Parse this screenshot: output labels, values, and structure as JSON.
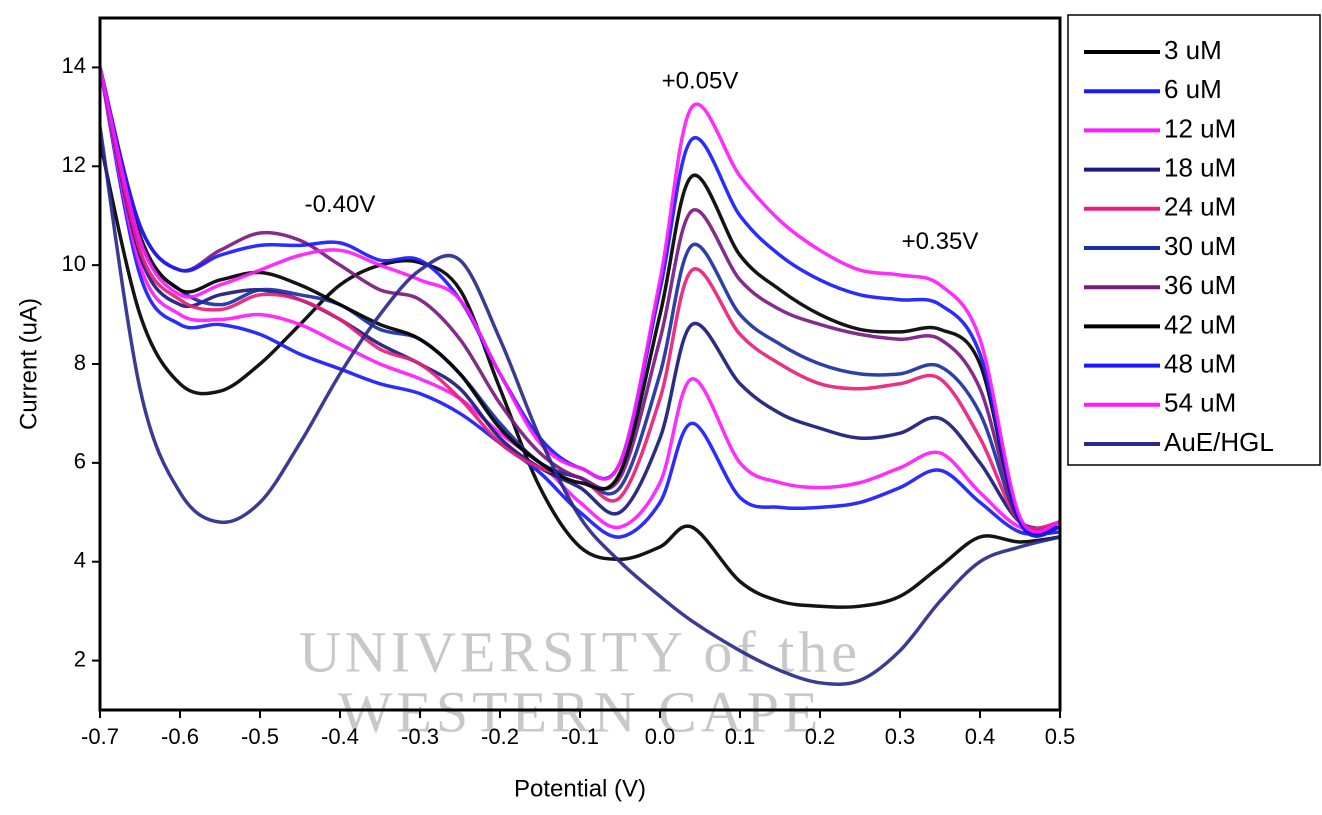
{
  "chart_data": {
    "type": "line",
    "xlabel": "Potential (V)",
    "ylabel": "Current (uA)",
    "annotations": [
      {
        "text": "-0.40V",
        "x": -0.4,
        "y": 11.2
      },
      {
        "text": "+0.05V",
        "x": 0.05,
        "y": 13.7
      },
      {
        "text": "+0.35V",
        "x": 0.35,
        "y": 10.45
      }
    ],
    "watermark": [
      "UNIVERSITY of the",
      "WESTERN CAPE"
    ],
    "xlim": [
      -0.7,
      0.5
    ],
    "ylim": [
      1,
      15
    ],
    "xticks": [
      -0.7,
      -0.6,
      -0.5,
      -0.4,
      -0.3,
      -0.2,
      -0.1,
      {
        "value": 0,
        "label": "0.0"
      },
      0.1,
      0.2,
      0.3,
      0.4,
      0.5
    ],
    "yticks": [
      2,
      4,
      6,
      8,
      10,
      12,
      14
    ],
    "legend": "outside-right",
    "x": [
      -0.7,
      -0.65,
      -0.6,
      -0.55,
      -0.5,
      -0.45,
      -0.4,
      -0.35,
      -0.3,
      -0.25,
      -0.2,
      -0.15,
      -0.1,
      -0.05,
      0,
      0.04,
      0.1,
      0.15,
      0.2,
      0.25,
      0.3,
      0.35,
      0.4,
      0.45,
      0.5
    ],
    "series": [
      {
        "name": "3 uM",
        "color": "#000000",
        "values": [
          12.5,
          9.0,
          7.6,
          7.45,
          8.0,
          8.8,
          9.6,
          10.0,
          10.05,
          9.5,
          7.5,
          5.5,
          4.3,
          4.05,
          4.3,
          4.7,
          3.6,
          3.2,
          3.1,
          3.1,
          3.3,
          3.9,
          4.5,
          4.4,
          4.5
        ]
      },
      {
        "name": "6 uM",
        "color": "#1a1aff",
        "values": [
          14,
          9.8,
          8.8,
          8.8,
          8.6,
          8.2,
          7.9,
          7.6,
          7.4,
          7.0,
          6.4,
          5.8,
          5.0,
          4.5,
          5.2,
          6.8,
          5.3,
          5.1,
          5.1,
          5.2,
          5.5,
          5.85,
          5.2,
          4.6,
          4.6
        ]
      },
      {
        "name": "12 uM",
        "color": "#ff1aff",
        "values": [
          14,
          10.0,
          9.0,
          8.9,
          9.0,
          8.8,
          8.4,
          8.0,
          7.7,
          7.3,
          6.6,
          6.0,
          5.2,
          4.7,
          5.6,
          7.7,
          6.0,
          5.6,
          5.5,
          5.6,
          5.9,
          6.2,
          5.4,
          4.7,
          4.7
        ]
      },
      {
        "name": "18 uM",
        "color": "#1a1a7a",
        "values": [
          14,
          10.2,
          9.2,
          9.4,
          9.5,
          9.3,
          8.9,
          8.4,
          8.0,
          7.5,
          6.5,
          5.9,
          5.5,
          5.0,
          6.5,
          8.8,
          7.6,
          7.0,
          6.7,
          6.5,
          6.6,
          6.9,
          6.0,
          4.8,
          4.7
        ]
      },
      {
        "name": "24 uM",
        "color": "#e8207a",
        "values": [
          14,
          10.3,
          9.3,
          9.1,
          9.4,
          9.3,
          8.9,
          8.3,
          8.0,
          7.3,
          6.4,
          5.9,
          5.7,
          5.3,
          7.3,
          9.9,
          8.6,
          8.0,
          7.6,
          7.5,
          7.6,
          7.7,
          6.5,
          4.8,
          4.8
        ]
      },
      {
        "name": "30 uM",
        "color": "#1a30a0",
        "values": [
          14,
          10.5,
          9.5,
          9.2,
          9.5,
          9.4,
          9.2,
          8.7,
          8.5,
          7.8,
          6.8,
          6.0,
          5.7,
          5.5,
          7.8,
          10.4,
          9.0,
          8.4,
          8.0,
          7.8,
          7.8,
          7.95,
          7.0,
          4.8,
          4.7
        ]
      },
      {
        "name": "36 uM",
        "color": "#7a1a80",
        "values": [
          14,
          10.8,
          9.9,
          10.3,
          10.65,
          10.5,
          10.0,
          9.5,
          9.3,
          8.5,
          7.2,
          6.2,
          5.7,
          5.7,
          8.5,
          11.1,
          9.7,
          9.1,
          8.8,
          8.6,
          8.5,
          8.5,
          7.5,
          4.8,
          4.8
        ]
      },
      {
        "name": "42 uM",
        "color": "#000000",
        "values": [
          14,
          10.6,
          9.5,
          9.7,
          9.85,
          9.6,
          9.2,
          8.8,
          8.5,
          7.8,
          6.7,
          6.0,
          5.6,
          5.8,
          9.0,
          11.8,
          10.2,
          9.5,
          9.0,
          8.7,
          8.65,
          8.7,
          8.0,
          4.8,
          4.7
        ]
      },
      {
        "name": "48 uM",
        "color": "#1a1aff",
        "values": [
          14,
          10.8,
          9.9,
          10.2,
          10.4,
          10.4,
          10.45,
          10.1,
          10.1,
          9.3,
          7.8,
          6.5,
          5.9,
          6.0,
          9.5,
          12.55,
          11.0,
          10.2,
          9.7,
          9.4,
          9.3,
          9.2,
          8.2,
          4.8,
          4.7
        ]
      },
      {
        "name": "54 uM",
        "color": "#ff1aff",
        "values": [
          14,
          10.5,
          9.4,
          9.6,
          9.9,
          10.2,
          10.3,
          10.0,
          9.7,
          9.3,
          7.8,
          6.4,
          5.9,
          6.0,
          9.7,
          13.2,
          11.8,
          10.9,
          10.3,
          9.9,
          9.8,
          9.6,
          8.5,
          4.9,
          4.8
        ]
      },
      {
        "name": "AuE/HGL",
        "color": "#2a2a8a",
        "values": [
          12.8,
          7.5,
          5.4,
          4.8,
          5.2,
          6.4,
          7.8,
          9.0,
          9.9,
          10.1,
          8.5,
          6.5,
          4.9,
          4.0,
          3.3,
          2.8,
          2.2,
          1.8,
          1.55,
          1.6,
          2.2,
          3.2,
          4.0,
          4.3,
          4.5
        ]
      }
    ]
  }
}
